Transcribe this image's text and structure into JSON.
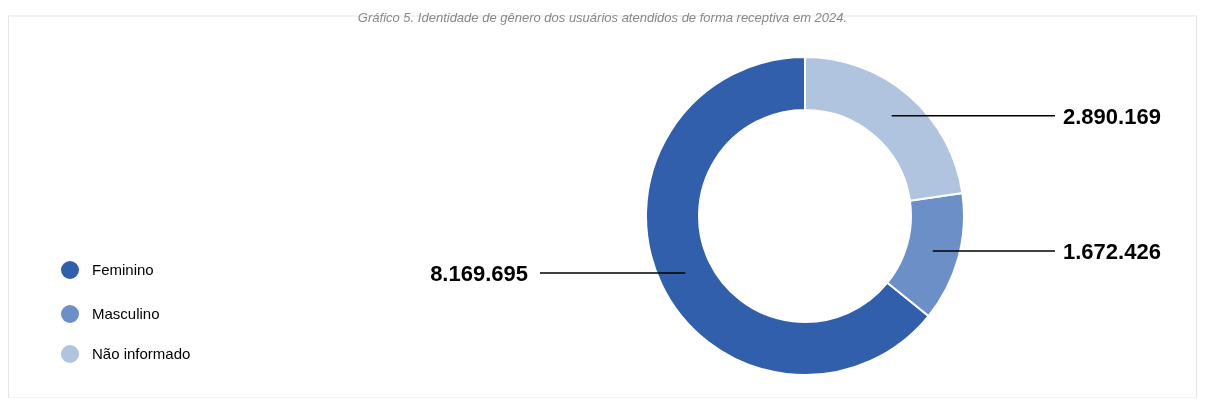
{
  "chart_data": {
    "type": "donut",
    "title": "Gráfico 5. Identidade de gênero dos usuários atendidos de forma receptiva em 2024.",
    "categories": [
      "Feminino",
      "Masculino",
      "Não informado"
    ],
    "values": [
      8169695,
      1672426,
      2890169
    ],
    "colors": [
      "#315fab",
      "#6d8fc7",
      "#b0c4e0"
    ],
    "value_labels": [
      "8.169.695",
      "1.672.426",
      "2.890.169"
    ],
    "legend": "left"
  }
}
